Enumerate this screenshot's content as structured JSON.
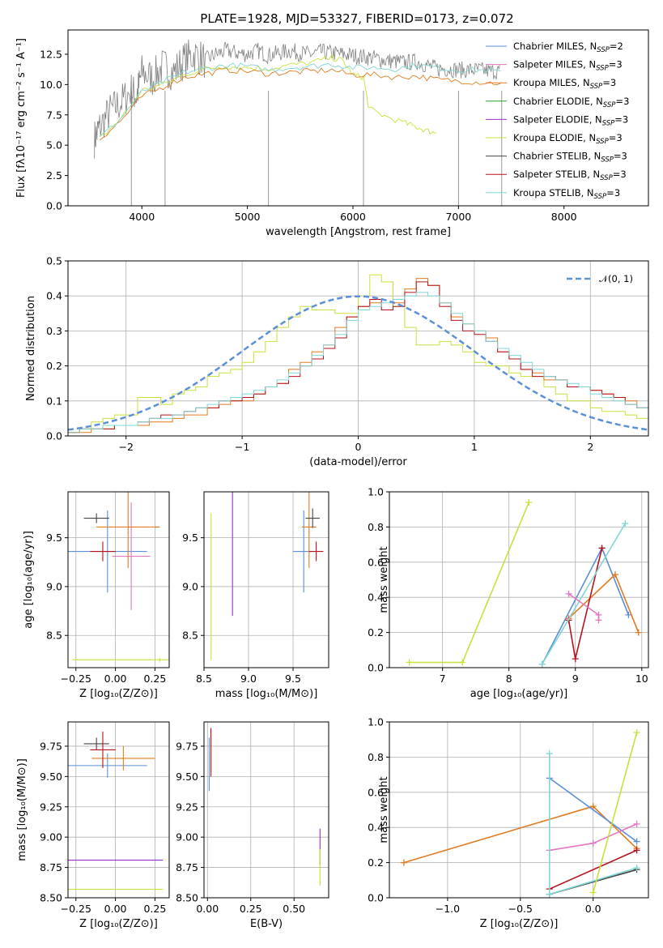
{
  "figure": {
    "title": "PLATE=1928, MJD=53327, FIBERID=0173, z=0.072"
  },
  "colors": {
    "Chabrier MILES": "#5b8fd6",
    "Salpeter MILES": "#e377c2",
    "Kroupa MILES": "#e07b1f",
    "Chabrier ELODIE": "#2ca02c",
    "Salpeter ELODIE": "#9b30c8",
    "Kroupa ELODIE": "#c9e03a",
    "Chabrier STELIB": "#444444",
    "Salpeter STELIB": "#b5121b",
    "Kroupa STELIB": "#7fd6d6",
    "data": "#808080",
    "normal": "#5b8fd6"
  },
  "legend_entries": [
    {
      "model": "Chabrier MILES",
      "imf": "Chabrier",
      "lib": "MILES",
      "nssp": "2"
    },
    {
      "model": "Salpeter MILES",
      "imf": "Salpeter",
      "lib": "MILES",
      "nssp": "3"
    },
    {
      "model": "Kroupa MILES",
      "imf": "Kroupa",
      "lib": "MILES",
      "nssp": "3"
    },
    {
      "model": "Chabrier ELODIE",
      "imf": "Chabrier",
      "lib": "ELODIE",
      "nssp": "3"
    },
    {
      "model": "Salpeter ELODIE",
      "imf": "Salpeter",
      "lib": "ELODIE",
      "nssp": "3"
    },
    {
      "model": "Kroupa ELODIE",
      "imf": "Kroupa",
      "lib": "ELODIE",
      "nssp": "3"
    },
    {
      "model": "Chabrier STELIB",
      "imf": "Chabrier",
      "lib": "STELIB",
      "nssp": "3"
    },
    {
      "model": "Salpeter STELIB",
      "imf": "Salpeter",
      "lib": "STELIB",
      "nssp": "3"
    },
    {
      "model": "Kroupa STELIB",
      "imf": "Kroupa",
      "lib": "STELIB",
      "nssp": "3"
    }
  ],
  "chart_data": [
    {
      "id": "spectrum",
      "type": "line",
      "xlabel": "wavelength [Angstrom, rest frame]",
      "ylabel": "Flux [fλ10⁻¹⁷ erg cm⁻² s⁻¹ A⁻¹]",
      "xlim": [
        3300,
        8800
      ],
      "ylim": [
        0,
        14.5
      ],
      "xticks": [
        4000,
        5000,
        6000,
        7000,
        8000
      ],
      "yticks": [
        0.0,
        2.5,
        5.0,
        7.5,
        10.0,
        12.5
      ],
      "data_curve": {
        "x": [
          3550,
          3600,
          3700,
          3800,
          3900,
          3950,
          4000,
          4100,
          4200,
          4300,
          4400,
          4500,
          4600,
          4700,
          4800,
          4900,
          5000,
          5100,
          5200,
          5300,
          5400,
          5500,
          5600,
          5700,
          5800,
          5900,
          6000,
          6100,
          6200,
          6300,
          6400,
          6500,
          6600,
          6700,
          6800,
          6900,
          7000,
          7100,
          7200,
          7300,
          7400
        ],
        "y": [
          5.5,
          6.5,
          7.8,
          8.5,
          9.5,
          9.0,
          11.0,
          10.5,
          11.5,
          11.0,
          12.0,
          12.5,
          12.0,
          12.5,
          12.8,
          12.6,
          12.5,
          12.8,
          12.4,
          12.6,
          12.8,
          12.6,
          12.5,
          12.7,
          12.6,
          12.5,
          12.4,
          12.3,
          12.2,
          12.0,
          11.9,
          11.8,
          11.9,
          11.6,
          11.3,
          11.3,
          11.2,
          11.2,
          11.2,
          11.1,
          11.1
        ]
      },
      "models": [
        {
          "name": "Kroupa ELODIE",
          "x": [
            3600,
            3800,
            4000,
            4200,
            4400,
            4600,
            4800,
            5000,
            5200,
            5400,
            5600,
            5800,
            5900,
            6000,
            6100,
            6150,
            6300,
            6500,
            6600,
            6700,
            6790
          ],
          "y": [
            5.5,
            7.2,
            9.5,
            10.0,
            10.8,
            11.3,
            11.5,
            11.4,
            11.3,
            11.6,
            11.8,
            12.2,
            12.0,
            10.8,
            10.6,
            8.0,
            7.4,
            6.8,
            6.5,
            6.2,
            6.0
          ]
        },
        {
          "name": "Kroupa MILES",
          "x": [
            3600,
            3800,
            4000,
            4200,
            4400,
            4600,
            4800,
            5000,
            5200,
            5400,
            5600,
            5800,
            6000,
            6200,
            6400,
            6600,
            6800,
            7000,
            7200,
            7400
          ],
          "y": [
            5.5,
            7.0,
            9.0,
            9.8,
            10.6,
            10.9,
            11.2,
            11.1,
            10.9,
            11.0,
            11.1,
            11.2,
            10.8,
            10.8,
            10.6,
            10.7,
            10.4,
            10.3,
            10.2,
            10.1
          ]
        },
        {
          "name": "Kroupa STELIB",
          "x": [
            3600,
            3800,
            4000,
            4200,
            4400,
            4600,
            4800,
            5000,
            5200,
            5400,
            5600,
            5800,
            6000,
            6200,
            6400,
            6600,
            6800,
            7000,
            7200,
            7400
          ],
          "y": [
            5.6,
            7.2,
            9.4,
            10.2,
            11.0,
            11.3,
            11.6,
            11.5,
            11.2,
            11.4,
            11.5,
            11.7,
            11.4,
            11.4,
            11.3,
            11.6,
            11.4,
            11.2,
            11.2,
            11.1
          ]
        }
      ]
    },
    {
      "id": "residuals",
      "type": "histogram",
      "xlabel": "(data-model)/error",
      "ylabel": "Normed distribution",
      "xlim": [
        -2.5,
        2.5
      ],
      "ylim": [
        0,
        0.5
      ],
      "xticks": [
        -2,
        -1,
        0,
        1,
        2
      ],
      "yticks": [
        0.0,
        0.1,
        0.2,
        0.3,
        0.4,
        0.5
      ],
      "legend": "𝒩(0, 1)",
      "bin_edges": [
        -2.5,
        -2.4,
        -2.3,
        -2.2,
        -2.1,
        -2.0,
        -1.9,
        -1.8,
        -1.7,
        -1.6,
        -1.5,
        -1.4,
        -1.3,
        -1.2,
        -1.1,
        -1.0,
        -0.9,
        -0.8,
        -0.7,
        -0.6,
        -0.5,
        -0.4,
        -0.3,
        -0.2,
        -0.1,
        0.0,
        0.1,
        0.2,
        0.3,
        0.4,
        0.5,
        0.6,
        0.7,
        0.8,
        0.9,
        1.0,
        1.1,
        1.2,
        1.3,
        1.4,
        1.5,
        1.6,
        1.7,
        1.8,
        1.9,
        2.0,
        2.1,
        2.2,
        2.3,
        2.4,
        2.5
      ],
      "series": [
        {
          "name": "Kroupa ELODIE",
          "values": [
            0.01,
            0.02,
            0.04,
            0.05,
            0.06,
            0.06,
            0.11,
            0.11,
            0.09,
            0.12,
            0.13,
            0.14,
            0.17,
            0.18,
            0.19,
            0.21,
            0.24,
            0.27,
            0.31,
            0.34,
            0.37,
            0.36,
            0.36,
            0.35,
            0.35,
            0.4,
            0.46,
            0.44,
            0.37,
            0.31,
            0.26,
            0.26,
            0.27,
            0.26,
            0.24,
            0.21,
            0.2,
            0.2,
            0.18,
            0.17,
            0.17,
            0.14,
            0.12,
            0.1,
            0.1,
            0.08,
            0.07,
            0.07,
            0.06,
            0.05
          ]
        },
        {
          "name": "Kroupa MILES",
          "values": [
            0.01,
            0.01,
            0.02,
            0.02,
            0.03,
            0.03,
            0.03,
            0.04,
            0.04,
            0.05,
            0.06,
            0.06,
            0.08,
            0.09,
            0.1,
            0.1,
            0.12,
            0.14,
            0.15,
            0.19,
            0.21,
            0.24,
            0.26,
            0.31,
            0.34,
            0.37,
            0.38,
            0.36,
            0.38,
            0.42,
            0.45,
            0.43,
            0.38,
            0.34,
            0.32,
            0.3,
            0.28,
            0.24,
            0.22,
            0.19,
            0.18,
            0.16,
            0.16,
            0.14,
            0.14,
            0.13,
            0.12,
            0.11,
            0.1,
            0.08
          ]
        },
        {
          "name": "Salpeter STELIB",
          "values": [
            0.01,
            0.02,
            0.02,
            0.02,
            0.03,
            0.03,
            0.04,
            0.05,
            0.06,
            0.06,
            0.07,
            0.08,
            0.08,
            0.1,
            0.1,
            0.11,
            0.12,
            0.14,
            0.15,
            0.17,
            0.2,
            0.22,
            0.25,
            0.28,
            0.34,
            0.37,
            0.39,
            0.36,
            0.37,
            0.41,
            0.44,
            0.43,
            0.37,
            0.33,
            0.3,
            0.29,
            0.27,
            0.24,
            0.22,
            0.19,
            0.17,
            0.17,
            0.16,
            0.14,
            0.14,
            0.13,
            0.12,
            0.11,
            0.09,
            0.08
          ]
        },
        {
          "name": "Kroupa STELIB",
          "values": [
            0.01,
            0.02,
            0.02,
            0.03,
            0.03,
            0.03,
            0.04,
            0.05,
            0.05,
            0.06,
            0.07,
            0.08,
            0.09,
            0.1,
            0.11,
            0.12,
            0.13,
            0.14,
            0.16,
            0.18,
            0.2,
            0.23,
            0.26,
            0.29,
            0.33,
            0.36,
            0.37,
            0.38,
            0.39,
            0.4,
            0.41,
            0.4,
            0.38,
            0.35,
            0.32,
            0.3,
            0.27,
            0.25,
            0.23,
            0.21,
            0.19,
            0.17,
            0.16,
            0.15,
            0.14,
            0.12,
            0.11,
            0.1,
            0.09,
            0.08
          ]
        }
      ],
      "normal_curve": {
        "mean": 0,
        "sigma": 1
      }
    },
    {
      "id": "z-age",
      "type": "scatter",
      "xlabel": "Z [log₁₀(Z/Z⊙)]",
      "ylabel": "age  [log₁₀(age/yr)]",
      "xlim": [
        -0.3,
        0.34
      ],
      "ylim": [
        8.17,
        9.97
      ],
      "xticks": [
        -0.25,
        0.0,
        0.25
      ],
      "yticks": [
        8.5,
        9.0,
        9.5
      ],
      "points": [
        {
          "name": "Chabrier MILES",
          "x": -0.05,
          "y": 9.36,
          "xerr": 0.25,
          "yerr": 0.42
        },
        {
          "name": "Salpeter MILES",
          "x": 0.1,
          "y": 9.31,
          "xerr": 0.12,
          "yerr": 0.55
        },
        {
          "name": "Kroupa MILES",
          "x": 0.08,
          "y": 9.61,
          "xerr": 0.2,
          "yerr": 0.42
        },
        {
          "name": "Chabrier STELIB",
          "x": -0.12,
          "y": 9.7,
          "xerr": 0.08,
          "yerr": 0.05
        },
        {
          "name": "Salpeter STELIB",
          "x": -0.08,
          "y": 9.36,
          "xerr": 0.08,
          "yerr": 0.1
        },
        {
          "name": "Kroupa ELODIE",
          "x": 0.28,
          "y": 8.25,
          "xerr": 0.55,
          "yerr": 0.02
        }
      ]
    },
    {
      "id": "mass-age",
      "type": "scatter",
      "xlabel": "mass [log₁₀(M/M⊙)]",
      "xlim": [
        8.5,
        9.9
      ],
      "ylim": [
        8.17,
        9.97
      ],
      "xticks": [
        8.5,
        9.0,
        9.5
      ],
      "yticks": [
        8.5,
        9.0,
        9.5
      ],
      "points": [
        {
          "name": "Chabrier MILES",
          "x": 9.62,
          "y": 9.36,
          "xerr": 0.12,
          "yerr": 0.42
        },
        {
          "name": "Kroupa MILES",
          "x": 9.68,
          "y": 9.61,
          "xerr": 0.08,
          "yerr": 0.42
        },
        {
          "name": "Chabrier STELIB",
          "x": 9.72,
          "y": 9.7,
          "xerr": 0.08,
          "yerr": 0.1
        },
        {
          "name": "Salpeter STELIB",
          "x": 9.76,
          "y": 9.36,
          "xerr": 0.08,
          "yerr": 0.1
        },
        {
          "name": "Salpeter ELODIE",
          "x": 8.82,
          "y": 9.4,
          "xerr": 0.0,
          "yerr": 0.7
        },
        {
          "name": "Kroupa ELODIE",
          "x": 8.58,
          "y": 9.0,
          "xerr": 0.0,
          "yerr": 0.75
        }
      ]
    },
    {
      "id": "age-weight",
      "type": "line",
      "xlabel": "age  [log₁₀(age/yr)]",
      "ylabel": "mass weight",
      "xlim": [
        6.2,
        10.1
      ],
      "ylim": [
        0,
        1.0
      ],
      "xticks": [
        7,
        8,
        9,
        10
      ],
      "yticks": [
        0.0,
        0.2,
        0.4,
        0.6,
        0.8,
        1.0
      ],
      "series": [
        {
          "name": "Kroupa ELODIE",
          "x": [
            6.5,
            7.3,
            8.3
          ],
          "y": [
            0.03,
            0.03,
            0.94
          ]
        },
        {
          "name": "Chabrier MILES",
          "x": [
            8.5,
            9.4,
            9.8
          ],
          "y": [
            0.02,
            0.68,
            0.3
          ]
        },
        {
          "name": "Kroupa MILES",
          "x": [
            8.9,
            9.6,
            9.95
          ],
          "y": [
            0.28,
            0.53,
            0.2
          ]
        },
        {
          "name": "Salpeter STELIB",
          "x": [
            8.9,
            9.0,
            9.4
          ],
          "y": [
            0.27,
            0.05,
            0.68
          ]
        },
        {
          "name": "Kroupa STELIB",
          "x": [
            8.5,
            9.75
          ],
          "y": [
            0.02,
            0.82
          ]
        },
        {
          "name": "Salpeter MILES",
          "x": [
            8.9,
            9.35,
            9.35
          ],
          "y": [
            0.42,
            0.3,
            0.27
          ]
        }
      ]
    },
    {
      "id": "z-mass",
      "type": "scatter",
      "xlabel": "Z [log₁₀(Z/Z⊙)]",
      "ylabel": "mass [log₁₀(M/M⊙)]",
      "xlim": [
        -0.3,
        0.34
      ],
      "ylim": [
        8.5,
        9.95
      ],
      "xticks": [
        -0.25,
        0.0,
        0.25
      ],
      "yticks": [
        8.5,
        8.75,
        9.0,
        9.25,
        9.5,
        9.75
      ],
      "points": [
        {
          "name": "Chabrier MILES",
          "x": -0.05,
          "y": 9.59,
          "xerr": 0.25,
          "yerr": 0.1
        },
        {
          "name": "Kroupa MILES",
          "x": 0.05,
          "y": 9.65,
          "xerr": 0.2,
          "yerr": 0.1
        },
        {
          "name": "Chabrier STELIB",
          "x": -0.12,
          "y": 9.77,
          "xerr": 0.08,
          "yerr": 0.05
        },
        {
          "name": "Salpeter STELIB",
          "x": -0.08,
          "y": 9.72,
          "xerr": 0.08,
          "yerr": 0.15
        },
        {
          "name": "Salpeter ELODIE",
          "x": 0.0,
          "y": 8.81,
          "xerr": 0.3,
          "yerr": 0.0
        },
        {
          "name": "Kroupa ELODIE",
          "x": 0.0,
          "y": 8.57,
          "xerr": 0.3,
          "yerr": 0.0
        }
      ]
    },
    {
      "id": "ebv-mass",
      "type": "scatter",
      "xlabel": "E(B-V)",
      "xlim": [
        -0.02,
        0.7
      ],
      "ylim": [
        8.5,
        9.95
      ],
      "xticks": [
        0.0,
        0.25,
        0.5
      ],
      "yticks": [
        8.5,
        8.75,
        9.0,
        9.25,
        9.5,
        9.75
      ],
      "points": [
        {
          "name": "Chabrier MILES",
          "x": 0.01,
          "y": 9.6,
          "yerr": 0.22
        },
        {
          "name": "Salpeter STELIB",
          "x": 0.02,
          "y": 9.7,
          "yerr": 0.2
        },
        {
          "name": "Salpeter ELODIE",
          "x": 0.65,
          "y": 8.92,
          "yerr": 0.15
        },
        {
          "name": "Kroupa ELODIE",
          "x": 0.65,
          "y": 8.75,
          "yerr": 0.15
        }
      ]
    },
    {
      "id": "z-weight",
      "type": "line",
      "xlabel": "Z [log₁₀(Z/Z⊙)]",
      "ylabel": "mass weight",
      "xlim": [
        -1.4,
        0.38
      ],
      "ylim": [
        0,
        1.0
      ],
      "xticks": [
        -1.0,
        -0.5,
        0.0
      ],
      "yticks": [
        0.0,
        0.2,
        0.4,
        0.6,
        0.8,
        1.0
      ],
      "series": [
        {
          "name": "Kroupa MILES",
          "x": [
            -1.3,
            0.0,
            0.3
          ],
          "y": [
            0.2,
            0.52,
            0.28
          ]
        },
        {
          "name": "Chabrier MILES",
          "x": [
            -0.3,
            0.3
          ],
          "y": [
            0.68,
            0.32
          ]
        },
        {
          "name": "Salpeter MILES",
          "x": [
            -0.3,
            0.0,
            0.3
          ],
          "y": [
            0.27,
            0.31,
            0.42
          ]
        },
        {
          "name": "Salpeter STELIB",
          "x": [
            -0.3,
            0.3
          ],
          "y": [
            0.05,
            0.27
          ]
        },
        {
          "name": "Chabrier STELIB",
          "x": [
            -0.3,
            0.3
          ],
          "y": [
            0.02,
            0.16
          ]
        },
        {
          "name": "Kroupa STELIB",
          "x": [
            -0.3,
            -0.3,
            0.3
          ],
          "y": [
            0.82,
            0.02,
            0.17
          ]
        },
        {
          "name": "Kroupa ELODIE",
          "x": [
            0.0,
            0.3
          ],
          "y": [
            0.03,
            0.94
          ]
        }
      ]
    }
  ]
}
